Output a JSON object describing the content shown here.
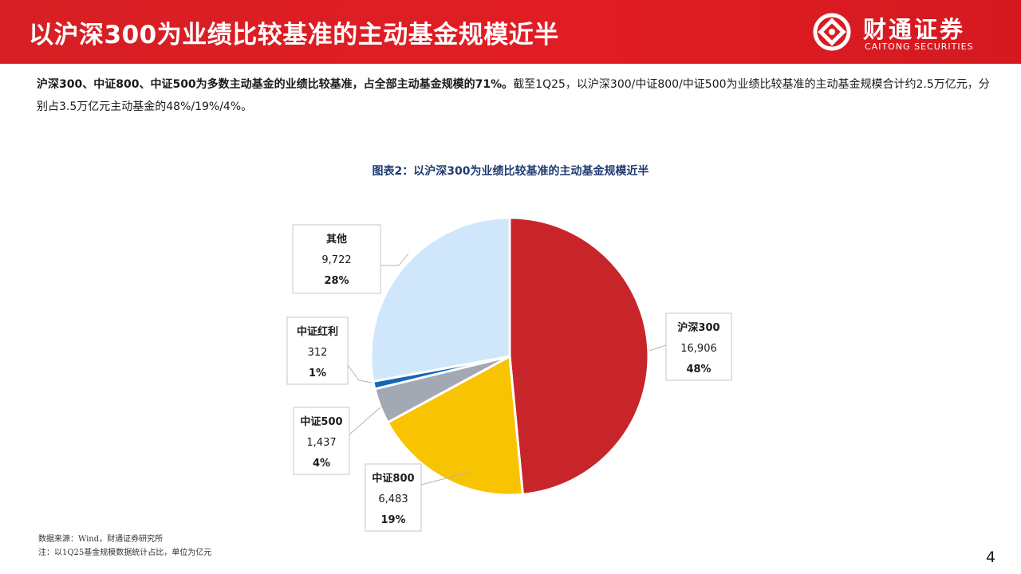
{
  "header": {
    "title": "以沪深300为业绩比较基准的主动基金规模近半",
    "logo_cn": "财通证券",
    "logo_en": "CAITONG SECURITIES",
    "logo_icon": "caitong-logo-icon"
  },
  "summary": {
    "bold": "沪深300、中证800、中证500为多数主动基金的业绩比较基准，占全部主动基金规模的71%。",
    "rest": "截至1Q25，以沪深300/中证800/中证500为业绩比较基准的主动基金规模合计约2.5万亿元，分别占3.5万亿元主动基金的48%/19%/4%。"
  },
  "chart_data": {
    "type": "pie",
    "title": "图表2：以沪深300为业绩比较基准的主动基金规模近半",
    "slices": [
      {
        "label": "沪深300",
        "value": 16906,
        "value_label": "16,906",
        "percent_label": "48%",
        "color": "#c8252b"
      },
      {
        "label": "中证800",
        "value": 6483,
        "value_label": "6,483",
        "percent_label": "19%",
        "color": "#f8c300"
      },
      {
        "label": "中证500",
        "value": 1437,
        "value_label": "1,437",
        "percent_label": "4%",
        "color": "#a2a9b4"
      },
      {
        "label": "中证红利",
        "value": 312,
        "value_label": "312",
        "percent_label": "1%",
        "color": "#1565b8"
      },
      {
        "label": "其他",
        "value": 9722,
        "value_label": "9,722",
        "percent_label": "28%",
        "color": "#cfe6fb"
      }
    ]
  },
  "footer": {
    "source": "数据来源：Wind，财通证券研究所",
    "note": "注：以1Q25基金规模数据统计占比，单位为亿元"
  },
  "page_number": "4"
}
